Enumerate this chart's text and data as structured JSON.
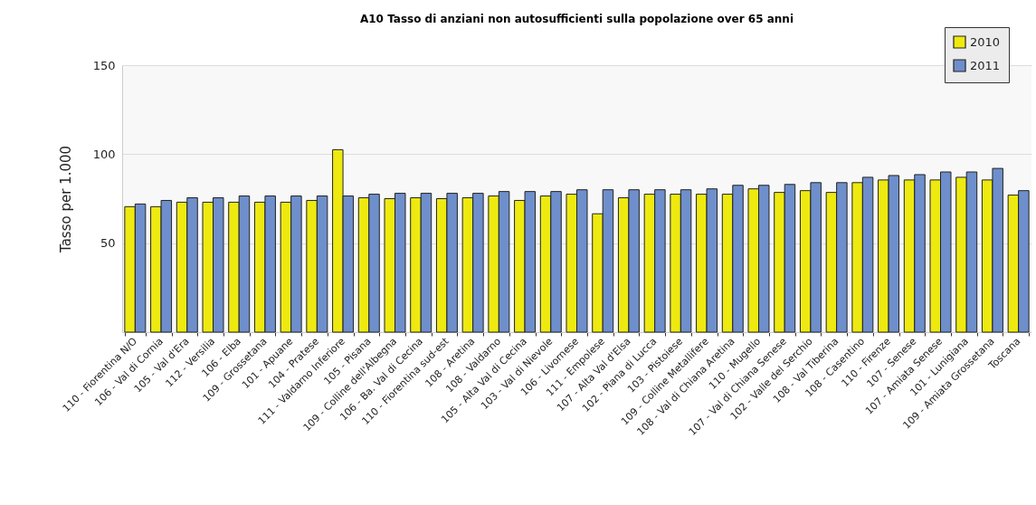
{
  "chart_data": {
    "type": "bar",
    "title": "A10 Tasso di anziani non autosufficienti sulla popolazione over 65 anni",
    "ylabel": "Tasso per 1.000",
    "categories": [
      "110 - Fiorentina N/O",
      "106 - Val di Cornia",
      "105 - Val d'Era",
      "112 - Versilia",
      "106 - Elba",
      "109 - Grossetana",
      "101 - Apuane",
      "104 - Pratese",
      "111 - Valdarno Inferiore",
      "105 - Pisana",
      "109 - Colline dell'Albegna",
      "106 - Ba. Val di Cecina",
      "110 - Fiorentina sud-est",
      "108 - Aretina",
      "108 - Valdarno",
      "105 - Alta Val di Cecina",
      "103 - Val di Nievole",
      "106 - Livornese",
      "111 - Empolese",
      "107 - Alta Val d'Elsa",
      "102 - Piana di Lucca",
      "103 - Pistoiese",
      "109 - Colline Metallifere",
      "108 - Val di Chiana Aretina",
      "110 - Mugello",
      "107 - Val di Chiana Senese",
      "102 - Valle del Serchio",
      "108 - Val Tiberina",
      "108 - Casentino",
      "110 - Firenze",
      "107  - Senese",
      "107 - Amiata Senese",
      "101 - Lunigiana",
      "109 - Amiata Grossetana",
      "Toscana"
    ],
    "series": [
      {
        "name": "2010",
        "color": "#eeea10",
        "values": [
          70.5,
          70.5,
          73,
          73,
          73,
          73,
          73,
          74,
          102.5,
          75.5,
          75,
          75.5,
          75,
          75.5,
          76.5,
          74,
          76.5,
          77.5,
          66.5,
          75.5,
          77.5,
          77.5,
          77.5,
          77.5,
          80.5,
          78.5,
          79.5,
          78.5,
          84,
          85.5,
          85.5,
          85.5,
          87,
          85.5,
          77
        ]
      },
      {
        "name": "2011",
        "color": "#6e8fcb",
        "values": [
          72,
          74,
          75.5,
          75.5,
          76.5,
          76.5,
          76.5,
          76.5,
          76.5,
          77.5,
          78,
          78,
          78,
          78,
          79,
          79,
          79,
          80,
          80,
          80,
          80,
          80,
          80.5,
          82.5,
          82.5,
          83,
          84,
          84,
          87,
          88,
          88.5,
          90,
          90,
          92,
          79.5
        ]
      }
    ],
    "ylim": [
      0,
      150
    ],
    "yticks": [
      50,
      100,
      150
    ],
    "grid": "y",
    "legend": "top right"
  }
}
